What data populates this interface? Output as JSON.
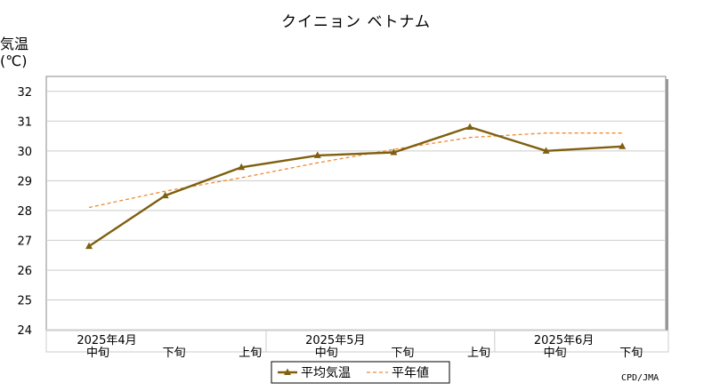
{
  "chart_data": {
    "type": "line",
    "title": "クイニョン ベトナム",
    "ylabel": "気温",
    "yunit": "(℃)",
    "ylim": [
      24,
      32.5
    ],
    "yticks": [
      24,
      25,
      26,
      27,
      28,
      29,
      30,
      31,
      32
    ],
    "grid": true,
    "legend_position": "bottom",
    "categories": [
      "中旬",
      "下旬",
      "上旬",
      "中旬",
      "下旬",
      "上旬",
      "中旬",
      "下旬"
    ],
    "month_labels": [
      {
        "label": "2025年4月",
        "index": 0
      },
      {
        "label": "2025年5月",
        "index": 3
      },
      {
        "label": "2025年6月",
        "index": 6
      }
    ],
    "series": [
      {
        "name": "平均気温",
        "values": [
          26.8,
          28.5,
          29.45,
          29.85,
          29.95,
          30.8,
          30.0,
          30.15
        ],
        "color": "#7f6010",
        "style": "solid",
        "marker": "triangle"
      },
      {
        "name": "平年値",
        "values": [
          28.1,
          28.65,
          29.1,
          29.6,
          30.05,
          30.45,
          30.6,
          30.6
        ],
        "color": "#ef8a30",
        "style": "dashed"
      }
    ]
  },
  "credit": "CPD/JMA"
}
